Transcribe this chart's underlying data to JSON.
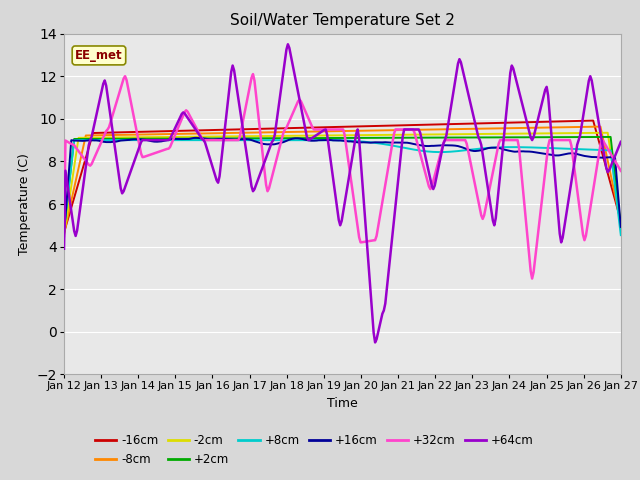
{
  "title": "Soil/Water Temperature Set 2",
  "xlabel": "Time",
  "ylabel": "Temperature (C)",
  "ylim": [
    -2,
    14
  ],
  "yticks": [
    -2,
    0,
    2,
    4,
    6,
    8,
    10,
    12,
    14
  ],
  "xtick_labels": [
    "Jan 12",
    "Jan 13",
    "Jan 14",
    "Jan 15",
    "Jan 16",
    "Jan 17",
    "Jan 18",
    "Jan 19",
    "Jan 20",
    "Jan 21",
    "Jan 22",
    "Jan 23",
    "Jan 24",
    "Jan 25",
    "Jan 26",
    "Jan 27"
  ],
  "series": {
    "-16cm": {
      "color": "#cc0000",
      "lw": 1.4
    },
    "-8cm": {
      "color": "#ff8800",
      "lw": 1.4
    },
    "-2cm": {
      "color": "#dddd00",
      "lw": 1.4
    },
    "+2cm": {
      "color": "#00aa00",
      "lw": 1.4
    },
    "+8cm": {
      "color": "#00cccc",
      "lw": 1.4
    },
    "+16cm": {
      "color": "#000099",
      "lw": 1.4
    },
    "+32cm": {
      "color": "#ff44cc",
      "lw": 1.8
    },
    "+64cm": {
      "color": "#9900cc",
      "lw": 1.8
    }
  },
  "legend_label": "EE_met",
  "fig_bg": "#d8d8d8",
  "plot_bg": "#e8e8e8",
  "grid_color": "#ffffff",
  "title_fontsize": 11,
  "label_fontsize": 9,
  "tick_fontsize": 8
}
